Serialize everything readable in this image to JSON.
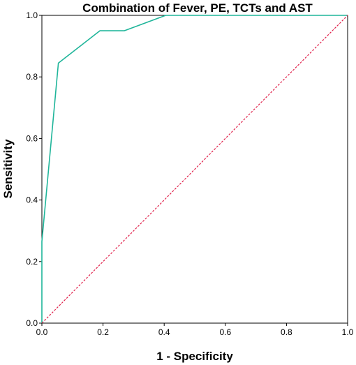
{
  "chart_data": {
    "type": "line",
    "title": "Combination of Fever, PE, TCTs and AST",
    "xlabel": "1 - Specificity",
    "ylabel": "Sensitivity",
    "xlim": [
      0,
      1
    ],
    "ylim": [
      0,
      1
    ],
    "xticks": [
      "0.0",
      "0.2",
      "0.4",
      "0.6",
      "0.8",
      "1.0"
    ],
    "yticks": [
      "0.0",
      "0.2",
      "0.4",
      "0.6",
      "0.8",
      "1.0"
    ],
    "grid": false,
    "legend": "none",
    "series": [
      {
        "color": "#1fb59a",
        "style": "solid",
        "x": [
          0.0,
          0.0,
          0.054,
          0.19,
          0.27,
          0.405,
          1.0
        ],
        "y": [
          0.0,
          0.265,
          0.845,
          0.95,
          0.95,
          1.0,
          1.0
        ]
      },
      {
        "color": "#e0204a",
        "style": "dashed",
        "x": [
          0,
          1
        ],
        "y": [
          0,
          1
        ]
      }
    ]
  }
}
